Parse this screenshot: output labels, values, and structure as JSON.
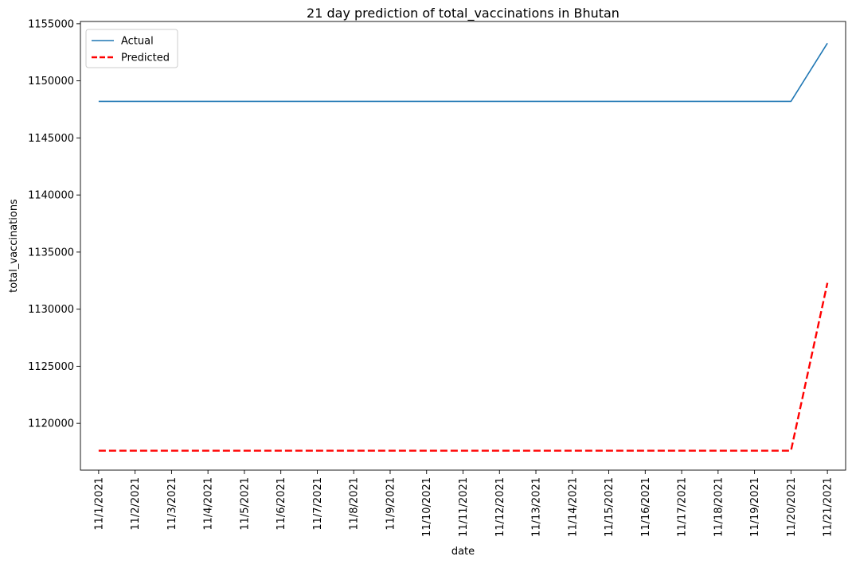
{
  "chart_data": {
    "type": "line",
    "title": "21 day prediction of total_vaccinations in Bhutan",
    "xlabel": "date",
    "ylabel": "total_vaccinations",
    "categories": [
      "11/1/2021",
      "11/2/2021",
      "11/3/2021",
      "11/4/2021",
      "11/5/2021",
      "11/6/2021",
      "11/7/2021",
      "11/8/2021",
      "11/9/2021",
      "11/10/2021",
      "11/11/2021",
      "11/12/2021",
      "11/13/2021",
      "11/14/2021",
      "11/15/2021",
      "11/16/2021",
      "11/17/2021",
      "11/18/2021",
      "11/19/2021",
      "11/20/2021",
      "11/21/2021"
    ],
    "ylim": [
      1115900,
      1155200
    ],
    "yticks": [
      1120000,
      1125000,
      1130000,
      1135000,
      1140000,
      1145000,
      1150000,
      1155000
    ],
    "yticklabels": [
      "1120000",
      "1125000",
      "1130000",
      "1135000",
      "1140000",
      "1145000",
      "1150000",
      "1155000"
    ],
    "grid": false,
    "legend_position": "top-left",
    "series": [
      {
        "name": "Actual",
        "color": "#1f77b4",
        "style": "solid",
        "values": [
          1148200,
          1148200,
          1148200,
          1148200,
          1148200,
          1148200,
          1148200,
          1148200,
          1148200,
          1148200,
          1148200,
          1148200,
          1148200,
          1148200,
          1148200,
          1148200,
          1148200,
          1148200,
          1148200,
          1148200,
          1153300
        ]
      },
      {
        "name": "Predicted",
        "color": "#ff0000",
        "style": "dashed",
        "values": [
          1117600,
          1117600,
          1117600,
          1117600,
          1117600,
          1117600,
          1117600,
          1117600,
          1117600,
          1117600,
          1117600,
          1117600,
          1117600,
          1117600,
          1117600,
          1117600,
          1117600,
          1117600,
          1117600,
          1117600,
          1132300
        ]
      }
    ]
  }
}
